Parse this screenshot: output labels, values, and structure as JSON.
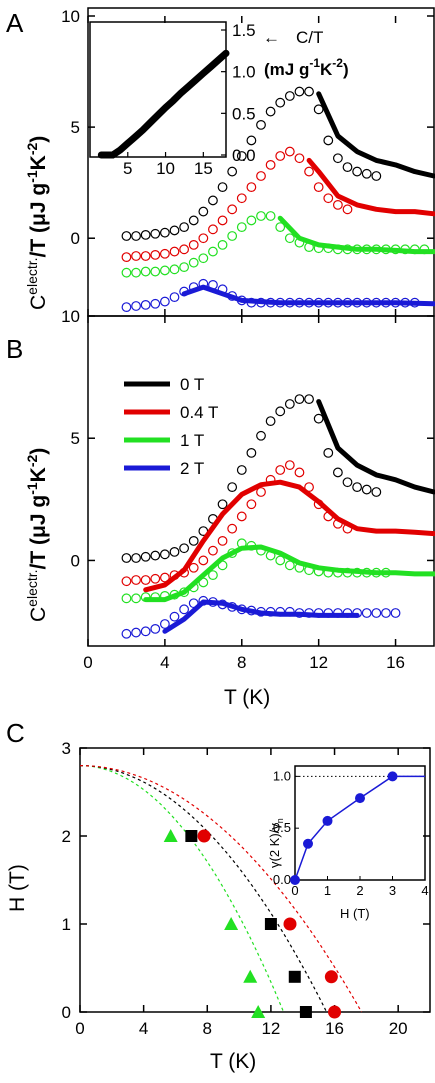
{
  "chart_data": [
    {
      "panel": "A",
      "type": "line",
      "ylabel": "C<sup>electr.</sup>/T (μJ g<sup>-1</sup>K<sup>-2</sup>)",
      "ylabel_main": "C",
      "ylabel_sup": "electr.",
      "ylabel_rest": "/T (μJ g",
      "ylabel_sup2": "-1",
      "ylabel_mid": "K",
      "ylabel_sup3": "-2",
      "ylabel_end": ")",
      "ytick_labels": [
        "0",
        "5",
        "10"
      ],
      "yticks": [
        0,
        5,
        10
      ],
      "ylim": [
        -3.5,
        10
      ],
      "xlim": [
        0,
        18
      ],
      "series": [
        {
          "color": "#000000",
          "offset": 0,
          "line_x": [
            12,
            13,
            14,
            15,
            16,
            17,
            18
          ],
          "line_y": [
            6.5,
            4.6,
            3.9,
            3.5,
            3.3,
            3.0,
            2.8
          ],
          "circ_x": [
            2,
            2.5,
            3,
            3.5,
            4,
            4.5,
            5,
            5.5,
            6,
            6.5,
            7,
            7.5,
            8,
            8.5,
            9,
            9.5,
            10,
            10.5,
            11,
            11.5,
            12,
            12.5,
            13,
            13.5,
            14,
            14.5,
            15
          ],
          "circ_y": [
            0.1,
            0.1,
            0.15,
            0.2,
            0.25,
            0.35,
            0.5,
            0.8,
            1.2,
            1.7,
            2.3,
            3.0,
            3.7,
            4.4,
            5.1,
            5.7,
            6.1,
            6.4,
            6.6,
            6.6,
            5.8,
            4.4,
            3.6,
            3.2,
            3.0,
            2.9,
            2.8
          ]
        },
        {
          "color": "#e10000",
          "offset": 0,
          "line_x": [
            11.5,
            12,
            13,
            14,
            15,
            16,
            17,
            18
          ],
          "line_y": [
            3.5,
            3.0,
            1.9,
            1.5,
            1.3,
            1.2,
            1.2,
            1.1
          ],
          "circ_x": [
            2,
            2.5,
            3,
            3.5,
            4,
            4.5,
            5,
            5.5,
            6,
            6.5,
            7,
            7.5,
            8,
            8.5,
            9,
            9.5,
            10,
            10.5,
            11,
            11.5,
            12,
            12.5,
            13,
            13.5
          ],
          "circ_y": [
            -0.85,
            -0.8,
            -0.8,
            -0.75,
            -0.7,
            -0.6,
            -0.5,
            -0.3,
            0.0,
            0.4,
            0.8,
            1.3,
            1.8,
            2.3,
            2.8,
            3.3,
            3.7,
            3.9,
            3.6,
            3.0,
            2.3,
            1.8,
            1.5,
            1.3
          ]
        },
        {
          "color": "#22e022",
          "offset": 0,
          "line_x": [
            10,
            11,
            12,
            13,
            14,
            15,
            16,
            17,
            18
          ],
          "line_y": [
            0.9,
            0.0,
            -0.3,
            -0.4,
            -0.5,
            -0.5,
            -0.55,
            -0.6,
            -0.6
          ],
          "circ_x": [
            2,
            2.5,
            3,
            3.5,
            4,
            4.5,
            5,
            5.5,
            6,
            6.5,
            7,
            7.5,
            8,
            8.5,
            9,
            9.5,
            10,
            10.5,
            11,
            11.5,
            12,
            12.5,
            13,
            13.5,
            14,
            14.5,
            15,
            15.5,
            16,
            16.5,
            17,
            17.5
          ],
          "circ_y": [
            -1.55,
            -1.55,
            -1.5,
            -1.5,
            -1.45,
            -1.4,
            -1.3,
            -1.1,
            -0.9,
            -0.6,
            -0.3,
            0.1,
            0.5,
            0.8,
            1.0,
            1.0,
            0.5,
            0.0,
            -0.2,
            -0.4,
            -0.45,
            -0.45,
            -0.5,
            -0.5,
            -0.5,
            -0.5,
            -0.5,
            -0.5,
            -0.5,
            -0.5,
            -0.5,
            -0.5
          ]
        },
        {
          "color": "#1a1ad6",
          "offset": 0,
          "line_x": [
            5,
            6,
            7,
            8,
            9,
            10,
            12,
            14,
            16,
            18
          ],
          "line_y": [
            -2.5,
            -2.2,
            -2.5,
            -2.8,
            -2.85,
            -2.9,
            -2.9,
            -2.9,
            -2.9,
            -2.95
          ],
          "circ_x": [
            2,
            2.5,
            3,
            3.5,
            4,
            4.5,
            5,
            5.5,
            6,
            6.5,
            7,
            7.5,
            8,
            8.5,
            9,
            9.5,
            10,
            10.5,
            11,
            11.5,
            12,
            12.5,
            13,
            13.5,
            14,
            14.5,
            15,
            15.5,
            16,
            16.5,
            17
          ],
          "circ_y": [
            -3.1,
            -3.05,
            -3.0,
            -2.95,
            -2.85,
            -2.65,
            -2.4,
            -2.2,
            -2.05,
            -2.1,
            -2.3,
            -2.6,
            -2.8,
            -2.9,
            -2.9,
            -2.9,
            -2.9,
            -2.9,
            -2.9,
            -2.9,
            -2.9,
            -2.9,
            -2.9,
            -2.9,
            -2.9,
            -2.9,
            -2.9,
            -2.9,
            -2.9,
            -2.9,
            -2.9
          ]
        }
      ],
      "inset": {
        "xtick_labels": [
          "5",
          "10",
          "15"
        ],
        "xticks": [
          5,
          10,
          15
        ],
        "xlim": [
          0,
          18
        ],
        "ytick_labels": [
          "0.0",
          "0.5",
          "1.0",
          "1.5"
        ],
        "yticks": [
          0.0,
          0.5,
          1.0,
          1.5
        ],
        "ylim": [
          0,
          1.5
        ],
        "x": [
          1.5,
          2,
          3,
          4,
          5,
          6,
          7,
          8,
          9,
          10,
          11,
          12,
          13,
          14,
          15,
          16,
          17,
          18
        ],
        "y": [
          0.0,
          0.0,
          0.0,
          0.06,
          0.14,
          0.22,
          0.3,
          0.39,
          0.48,
          0.57,
          0.65,
          0.74,
          0.82,
          0.9,
          0.98,
          1.06,
          1.14,
          1.22
        ],
        "label_line1": "C/T",
        "label_line2a": "(mJ g",
        "label_sup1": "-1",
        "label_line2b": "K",
        "label_sup2": "-2",
        "label_line2c": ")",
        "arrow": "←"
      }
    },
    {
      "panel": "B",
      "type": "line",
      "xlabel": "T (K)",
      "ylabel_main": "C",
      "ylabel_sup": "electr.",
      "ylabel_rest": "/T (μJ g",
      "ylabel_sup2": "-1",
      "ylabel_mid": "K",
      "ylabel_sup3": "-2",
      "ylabel_end": ")",
      "ytick_labels": [
        "0",
        "5",
        "10"
      ],
      "yticks": [
        0,
        5,
        10
      ],
      "xtick_labels": [
        "0",
        "4",
        "8",
        "12",
        "16"
      ],
      "xticks": [
        0,
        4,
        8,
        12,
        16
      ],
      "ylim": [
        -3.5,
        10
      ],
      "xlim": [
        0,
        18
      ],
      "legend": [
        {
          "name": "0 T",
          "color": "#000000"
        },
        {
          "name": "0.4 T",
          "color": "#e10000"
        },
        {
          "name": "1 T",
          "color": "#22e022"
        },
        {
          "name": "2 T",
          "color": "#1a1ad6"
        }
      ],
      "series": [
        {
          "name": "0 T",
          "color": "#000000",
          "line_x": [
            12,
            13,
            14,
            15,
            16,
            17,
            18
          ],
          "line_y": [
            6.5,
            4.6,
            3.9,
            3.5,
            3.3,
            3.0,
            2.8
          ],
          "circ_x": [
            2,
            2.5,
            3,
            3.5,
            4,
            4.5,
            5,
            5.5,
            6,
            6.5,
            7,
            7.5,
            8,
            8.5,
            9,
            9.5,
            10,
            10.5,
            11,
            11.5,
            12,
            12.5,
            13,
            13.5,
            14,
            14.5,
            15
          ],
          "circ_y": [
            0.1,
            0.1,
            0.15,
            0.2,
            0.25,
            0.35,
            0.5,
            0.8,
            1.2,
            1.7,
            2.3,
            3.0,
            3.7,
            4.4,
            5.1,
            5.7,
            6.1,
            6.4,
            6.6,
            6.6,
            5.8,
            4.4,
            3.6,
            3.2,
            3.0,
            2.9,
            2.8
          ]
        },
        {
          "name": "0.4 T",
          "color": "#e10000",
          "line_x": [
            3,
            4,
            5,
            6,
            7,
            8,
            9,
            10,
            11,
            12,
            13,
            14,
            15,
            16,
            17,
            18
          ],
          "line_y": [
            -1.2,
            -1.0,
            -0.4,
            0.8,
            1.9,
            2.7,
            3.1,
            3.2,
            3.0,
            2.4,
            1.7,
            1.3,
            1.2,
            1.2,
            1.15,
            1.1
          ],
          "circ_x": [
            2,
            2.5,
            3,
            3.5,
            4,
            4.5,
            5,
            5.5,
            6,
            6.5,
            7,
            7.5,
            8,
            8.5,
            9,
            9.5,
            10,
            10.5,
            11,
            11.5,
            12,
            12.5,
            13,
            13.5
          ],
          "circ_y": [
            -0.85,
            -0.8,
            -0.8,
            -0.75,
            -0.7,
            -0.6,
            -0.5,
            -0.3,
            0.0,
            0.4,
            0.8,
            1.3,
            1.8,
            2.3,
            2.8,
            3.3,
            3.7,
            3.9,
            3.6,
            3.0,
            2.3,
            1.8,
            1.5,
            1.3
          ]
        },
        {
          "name": "1 T",
          "color": "#22e022",
          "line_x": [
            3,
            4,
            5,
            6,
            7,
            8,
            9,
            10,
            11,
            12,
            13,
            14,
            15,
            16,
            17,
            18
          ],
          "line_y": [
            -1.6,
            -1.6,
            -1.3,
            -0.6,
            0.1,
            0.5,
            0.55,
            0.3,
            -0.1,
            -0.3,
            -0.4,
            -0.45,
            -0.5,
            -0.5,
            -0.55,
            -0.55
          ],
          "circ_x": [
            2,
            2.5,
            3,
            3.5,
            4,
            4.5,
            5,
            5.5,
            6,
            6.5,
            7,
            7.5,
            8,
            8.5,
            9,
            9.5,
            10,
            10.5,
            11,
            11.5,
            12,
            12.5,
            13,
            13.5,
            14,
            14.5,
            15,
            15.5
          ],
          "circ_y": [
            -1.55,
            -1.55,
            -1.5,
            -1.5,
            -1.45,
            -1.4,
            -1.3,
            -1.1,
            -0.9,
            -0.6,
            -0.2,
            0.3,
            0.7,
            0.6,
            0.4,
            0.2,
            0.0,
            -0.2,
            -0.3,
            -0.4,
            -0.45,
            -0.5,
            -0.5,
            -0.5,
            -0.5,
            -0.5,
            -0.5,
            -0.5
          ]
        },
        {
          "name": "2 T",
          "color": "#1a1ad6",
          "line_x": [
            4,
            5,
            6,
            7,
            8,
            9,
            10,
            11,
            12,
            13,
            14
          ],
          "line_y": [
            -2.9,
            -2.4,
            -1.7,
            -1.75,
            -2.0,
            -2.15,
            -2.2,
            -2.2,
            -2.25,
            -2.25,
            -2.25
          ],
          "circ_x": [
            2,
            2.5,
            3,
            3.5,
            4,
            4.5,
            5,
            5.5,
            6,
            6.5,
            7,
            7.5,
            8,
            8.5,
            9,
            9.5,
            10,
            10.5,
            11,
            11.5,
            12,
            12.5,
            13,
            13.5,
            14,
            14.5,
            15,
            15.5,
            16
          ],
          "circ_y": [
            -3.0,
            -2.95,
            -2.9,
            -2.8,
            -2.6,
            -2.3,
            -2.0,
            -1.75,
            -1.65,
            -1.7,
            -1.8,
            -1.9,
            -2.0,
            -2.05,
            -2.1,
            -2.1,
            -2.1,
            -2.1,
            -2.15,
            -2.15,
            -2.15,
            -2.15,
            -2.15,
            -2.15,
            -2.15,
            -2.15,
            -2.15,
            -2.15,
            -2.15
          ]
        }
      ]
    },
    {
      "panel": "C",
      "type": "scatter",
      "xlabel": "T (K)",
      "ylabel": "H (T)",
      "xtick_labels": [
        "0",
        "4",
        "8",
        "12",
        "16",
        "20"
      ],
      "xticks": [
        0,
        4,
        8,
        12,
        16,
        20
      ],
      "ytick_labels": [
        "0",
        "1",
        "2",
        "3"
      ],
      "yticks": [
        0,
        1,
        2,
        3
      ],
      "xlim": [
        0,
        22
      ],
      "ylim": [
        0,
        3
      ],
      "series": [
        {
          "marker": "triangle",
          "color": "#22e022",
          "x": [
            5.7,
            9.5,
            10.7,
            11.2
          ],
          "y": [
            2.0,
            1.0,
            0.4,
            0.0
          ],
          "fit_Tc": 12.8,
          "fit_H0": 2.8
        },
        {
          "marker": "square",
          "color": "#000000",
          "x": [
            7.0,
            12.0,
            13.5,
            14.2
          ],
          "y": [
            2.0,
            1.0,
            0.4,
            0.0
          ],
          "fit_Tc": 15.5,
          "fit_H0": 2.8
        },
        {
          "marker": "circle",
          "color": "#e10000",
          "x": [
            7.8,
            13.2,
            15.8,
            16.0
          ],
          "y": [
            2.0,
            1.0,
            0.4,
            0.0
          ],
          "fit_Tc": 17.7,
          "fit_H0": 2.8
        }
      ],
      "inset": {
        "xlabel": "H (T)",
        "ylabel": "γ(2 K)/γ",
        "ylabel_sub": "n",
        "xtick_labels": [
          "0",
          "1",
          "2",
          "3",
          "4"
        ],
        "xticks": [
          0,
          1,
          2,
          3,
          4
        ],
        "ytick_labels": [
          "0.0",
          "0.5",
          "1.0"
        ],
        "yticks": [
          0.0,
          0.5,
          1.0
        ],
        "xlim": [
          0,
          4
        ],
        "ylim": [
          0,
          1.1
        ],
        "x": [
          0,
          0.4,
          1.0,
          2.0,
          3.0
        ],
        "y": [
          0.0,
          0.35,
          0.57,
          0.79,
          1.0
        ],
        "color": "#1a1ad6",
        "reference": 1.0
      }
    }
  ],
  "labels": {
    "A": "A",
    "B": "B",
    "C": "C"
  }
}
